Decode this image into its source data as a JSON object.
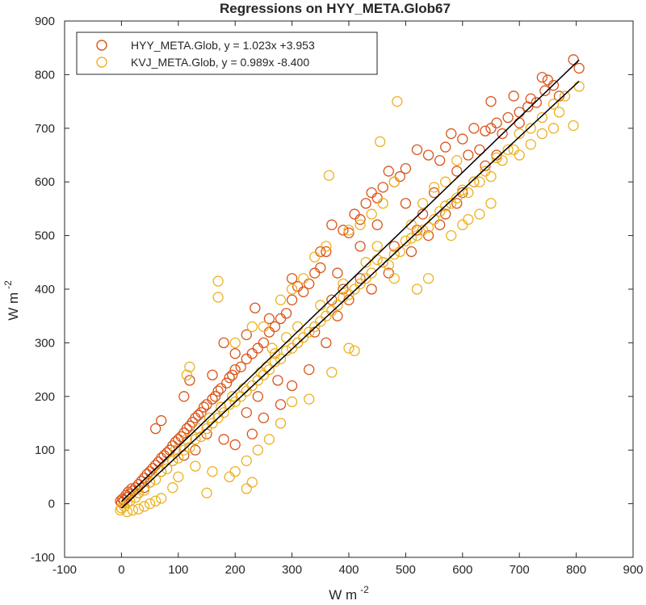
{
  "chart_data": {
    "type": "scatter",
    "title": "Regressions on HYY_META.Glob67",
    "xlabel": "W m",
    "xlabel_sup": "-2",
    "ylabel": "W m",
    "ylabel_sup": "-2",
    "xlim": [
      -100,
      900
    ],
    "ylim": [
      -100,
      900
    ],
    "xticks": [
      "-100",
      "0",
      "100",
      "200",
      "300",
      "400",
      "500",
      "600",
      "700",
      "800",
      "900"
    ],
    "yticks": [
      "-100",
      "0",
      "100",
      "200",
      "300",
      "400",
      "500",
      "600",
      "700",
      "800",
      "900"
    ],
    "grid": false,
    "legend_position": "top-left",
    "series": [
      {
        "name": "HYY_META.Glob, y = 1.023x +3.953",
        "color": "#d95319",
        "marker": "open-circle",
        "fit": {
          "slope": 1.023,
          "intercept": 3.953,
          "x_range": [
            0,
            805
          ]
        },
        "points": [
          [
            795,
            828
          ],
          [
            805,
            812
          ],
          [
            740,
            795
          ],
          [
            750,
            790
          ],
          [
            760,
            780
          ],
          [
            690,
            760
          ],
          [
            720,
            755
          ],
          [
            730,
            748
          ],
          [
            650,
            750
          ],
          [
            700,
            730
          ],
          [
            680,
            720
          ],
          [
            660,
            710
          ],
          [
            640,
            695
          ],
          [
            620,
            700
          ],
          [
            600,
            680
          ],
          [
            580,
            690
          ],
          [
            570,
            665
          ],
          [
            560,
            640
          ],
          [
            540,
            650
          ],
          [
            520,
            660
          ],
          [
            500,
            625
          ],
          [
            490,
            610
          ],
          [
            470,
            620
          ],
          [
            480,
            600
          ],
          [
            460,
            590
          ],
          [
            450,
            570
          ],
          [
            440,
            580
          ],
          [
            430,
            560
          ],
          [
            420,
            530
          ],
          [
            410,
            540
          ],
          [
            400,
            505
          ],
          [
            390,
            510
          ],
          [
            370,
            520
          ],
          [
            360,
            470
          ],
          [
            350,
            440
          ],
          [
            340,
            430
          ],
          [
            330,
            410
          ],
          [
            320,
            395
          ],
          [
            310,
            405
          ],
          [
            300,
            380
          ],
          [
            290,
            355
          ],
          [
            280,
            345
          ],
          [
            270,
            330
          ],
          [
            260,
            320
          ],
          [
            250,
            300
          ],
          [
            240,
            290
          ],
          [
            235,
            365
          ],
          [
            230,
            280
          ],
          [
            220,
            270
          ],
          [
            210,
            255
          ],
          [
            200,
            250
          ],
          [
            195,
            240
          ],
          [
            190,
            235
          ],
          [
            185,
            225
          ],
          [
            180,
            300
          ],
          [
            175,
            215
          ],
          [
            170,
            210
          ],
          [
            165,
            200
          ],
          [
            160,
            195
          ],
          [
            150,
            185
          ],
          [
            145,
            180
          ],
          [
            140,
            170
          ],
          [
            135,
            165
          ],
          [
            130,
            160
          ],
          [
            125,
            152
          ],
          [
            120,
            145
          ],
          [
            115,
            140
          ],
          [
            110,
            132
          ],
          [
            105,
            125
          ],
          [
            100,
            120
          ],
          [
            95,
            115
          ],
          [
            90,
            108
          ],
          [
            85,
            100
          ],
          [
            80,
            95
          ],
          [
            75,
            90
          ],
          [
            70,
            85
          ],
          [
            65,
            78
          ],
          [
            60,
            72
          ],
          [
            55,
            66
          ],
          [
            50,
            60
          ],
          [
            45,
            55
          ],
          [
            40,
            48
          ],
          [
            35,
            42
          ],
          [
            30,
            36
          ],
          [
            25,
            30
          ],
          [
            20,
            24
          ],
          [
            15,
            18
          ],
          [
            10,
            12
          ],
          [
            5,
            6
          ],
          [
            0,
            2
          ],
          [
            -2,
            5
          ],
          [
            2,
            9
          ],
          [
            8,
            16
          ],
          [
            12,
            22
          ],
          [
            18,
            28
          ],
          [
            60,
            140
          ],
          [
            70,
            155
          ],
          [
            120,
            230
          ],
          [
            110,
            200
          ],
          [
            160,
            240
          ],
          [
            200,
            280
          ],
          [
            220,
            315
          ],
          [
            260,
            345
          ],
          [
            300,
            420
          ],
          [
            350,
            470
          ],
          [
            380,
            430
          ],
          [
            420,
            480
          ],
          [
            450,
            520
          ],
          [
            500,
            560
          ],
          [
            520,
            510
          ],
          [
            550,
            580
          ],
          [
            590,
            620
          ],
          [
            610,
            650
          ],
          [
            630,
            660
          ],
          [
            650,
            700
          ],
          [
            670,
            690
          ],
          [
            700,
            710
          ],
          [
            715,
            740
          ],
          [
            745,
            770
          ],
          [
            770,
            760
          ],
          [
            250,
            160
          ],
          [
            230,
            130
          ],
          [
            200,
            110
          ],
          [
            180,
            120
          ],
          [
            280,
            185
          ],
          [
            300,
            220
          ],
          [
            330,
            250
          ],
          [
            360,
            300
          ],
          [
            380,
            350
          ],
          [
            400,
            380
          ],
          [
            420,
            420
          ],
          [
            440,
            400
          ],
          [
            460,
            450
          ],
          [
            480,
            480
          ],
          [
            510,
            470
          ],
          [
            530,
            540
          ],
          [
            560,
            520
          ],
          [
            590,
            560
          ],
          [
            620,
            600
          ],
          [
            660,
            650
          ],
          [
            110,
            90
          ],
          [
            130,
            100
          ],
          [
            150,
            130
          ],
          [
            90,
            80
          ],
          [
            70,
            60
          ],
          [
            50,
            40
          ],
          [
            40,
            30
          ],
          [
            30,
            20
          ],
          [
            220,
            170
          ],
          [
            240,
            200
          ],
          [
            275,
            230
          ],
          [
            310,
            300
          ],
          [
            340,
            320
          ],
          [
            370,
            380
          ],
          [
            390,
            400
          ],
          [
            470,
            430
          ],
          [
            540,
            500
          ],
          [
            570,
            540
          ],
          [
            600,
            580
          ],
          [
            640,
            630
          ]
        ]
      },
      {
        "name": "KVJ_META.Glob, y = 0.989x -8.400",
        "color": "#edb120",
        "marker": "open-circle",
        "fit": {
          "slope": 0.989,
          "intercept": -8.4,
          "x_range": [
            0,
            805
          ]
        },
        "points": [
          [
            805,
            778
          ],
          [
            795,
            705
          ],
          [
            780,
            760
          ],
          [
            760,
            745
          ],
          [
            740,
            720
          ],
          [
            720,
            700
          ],
          [
            700,
            690
          ],
          [
            690,
            660
          ],
          [
            670,
            640
          ],
          [
            650,
            610
          ],
          [
            630,
            600
          ],
          [
            610,
            580
          ],
          [
            590,
            570
          ],
          [
            570,
            555
          ],
          [
            550,
            530
          ],
          [
            530,
            510
          ],
          [
            510,
            495
          ],
          [
            490,
            470
          ],
          [
            470,
            445
          ],
          [
            450,
            455
          ],
          [
            430,
            420
          ],
          [
            410,
            400
          ],
          [
            390,
            385
          ],
          [
            370,
            360
          ],
          [
            350,
            340
          ],
          [
            330,
            320
          ],
          [
            310,
            300
          ],
          [
            290,
            285
          ],
          [
            270,
            265
          ],
          [
            250,
            240
          ],
          [
            230,
            220
          ],
          [
            210,
            200
          ],
          [
            190,
            185
          ],
          [
            170,
            160
          ],
          [
            150,
            140
          ],
          [
            130,
            120
          ],
          [
            110,
            100
          ],
          [
            90,
            80
          ],
          [
            70,
            60
          ],
          [
            50,
            40
          ],
          [
            30,
            20
          ],
          [
            10,
            2
          ],
          [
            0,
            -8
          ],
          [
            -2,
            -12
          ],
          [
            5,
            -5
          ],
          [
            15,
            5
          ],
          [
            25,
            12
          ],
          [
            40,
            25
          ],
          [
            60,
            45
          ],
          [
            80,
            65
          ],
          [
            100,
            85
          ],
          [
            120,
            105
          ],
          [
            140,
            125
          ],
          [
            160,
            150
          ],
          [
            180,
            170
          ],
          [
            200,
            190
          ],
          [
            220,
            210
          ],
          [
            240,
            230
          ],
          [
            260,
            250
          ],
          [
            280,
            270
          ],
          [
            300,
            290
          ],
          [
            320,
            310
          ],
          [
            340,
            330
          ],
          [
            360,
            350
          ],
          [
            380,
            370
          ],
          [
            400,
            390
          ],
          [
            420,
            410
          ],
          [
            440,
            430
          ],
          [
            460,
            450
          ],
          [
            480,
            465
          ],
          [
            500,
            490
          ],
          [
            520,
            500
          ],
          [
            540,
            515
          ],
          [
            560,
            545
          ],
          [
            580,
            560
          ],
          [
            600,
            585
          ],
          [
            620,
            600
          ],
          [
            640,
            620
          ],
          [
            660,
            645
          ],
          [
            680,
            660
          ],
          [
            485,
            750
          ],
          [
            455,
            675
          ],
          [
            365,
            612
          ],
          [
            170,
            415
          ],
          [
            170,
            385
          ],
          [
            120,
            255
          ],
          [
            115,
            240
          ],
          [
            250,
            330
          ],
          [
            230,
            330
          ],
          [
            200,
            300
          ],
          [
            580,
            500
          ],
          [
            600,
            520
          ],
          [
            520,
            400
          ],
          [
            540,
            420
          ],
          [
            480,
            420
          ],
          [
            410,
            285
          ],
          [
            400,
            290
          ],
          [
            370,
            245
          ],
          [
            330,
            195
          ],
          [
            300,
            190
          ],
          [
            280,
            150
          ],
          [
            260,
            120
          ],
          [
            240,
            100
          ],
          [
            220,
            80
          ],
          [
            200,
            60
          ],
          [
            230,
            40
          ],
          [
            220,
            28
          ],
          [
            190,
            50
          ],
          [
            150,
            20
          ],
          [
            160,
            60
          ],
          [
            130,
            70
          ],
          [
            100,
            50
          ],
          [
            90,
            30
          ],
          [
            70,
            10
          ],
          [
            50,
            0
          ],
          [
            40,
            -5
          ],
          [
            30,
            -10
          ],
          [
            20,
            -12
          ],
          [
            10,
            -15
          ],
          [
            60,
            5
          ],
          [
            400,
            510
          ],
          [
            420,
            520
          ],
          [
            440,
            540
          ],
          [
            460,
            560
          ],
          [
            480,
            600
          ],
          [
            360,
            480
          ],
          [
            340,
            460
          ],
          [
            320,
            420
          ],
          [
            300,
            400
          ],
          [
            280,
            380
          ],
          [
            270,
            280
          ],
          [
            255,
            255
          ],
          [
            245,
            245
          ],
          [
            215,
            215
          ],
          [
            195,
            200
          ],
          [
            175,
            180
          ],
          [
            155,
            160
          ],
          [
            135,
            140
          ],
          [
            115,
            120
          ],
          [
            95,
            100
          ],
          [
            650,
            560
          ],
          [
            630,
            540
          ],
          [
            610,
            530
          ],
          [
            700,
            650
          ],
          [
            720,
            670
          ],
          [
            740,
            690
          ],
          [
            760,
            700
          ],
          [
            770,
            730
          ],
          [
            570,
            600
          ],
          [
            590,
            640
          ],
          [
            510,
            520
          ],
          [
            530,
            560
          ],
          [
            550,
            590
          ],
          [
            450,
            480
          ],
          [
            430,
            450
          ],
          [
            390,
            410
          ],
          [
            350,
            370
          ],
          [
            310,
            330
          ],
          [
            290,
            310
          ],
          [
            265,
            290
          ]
        ]
      }
    ]
  }
}
